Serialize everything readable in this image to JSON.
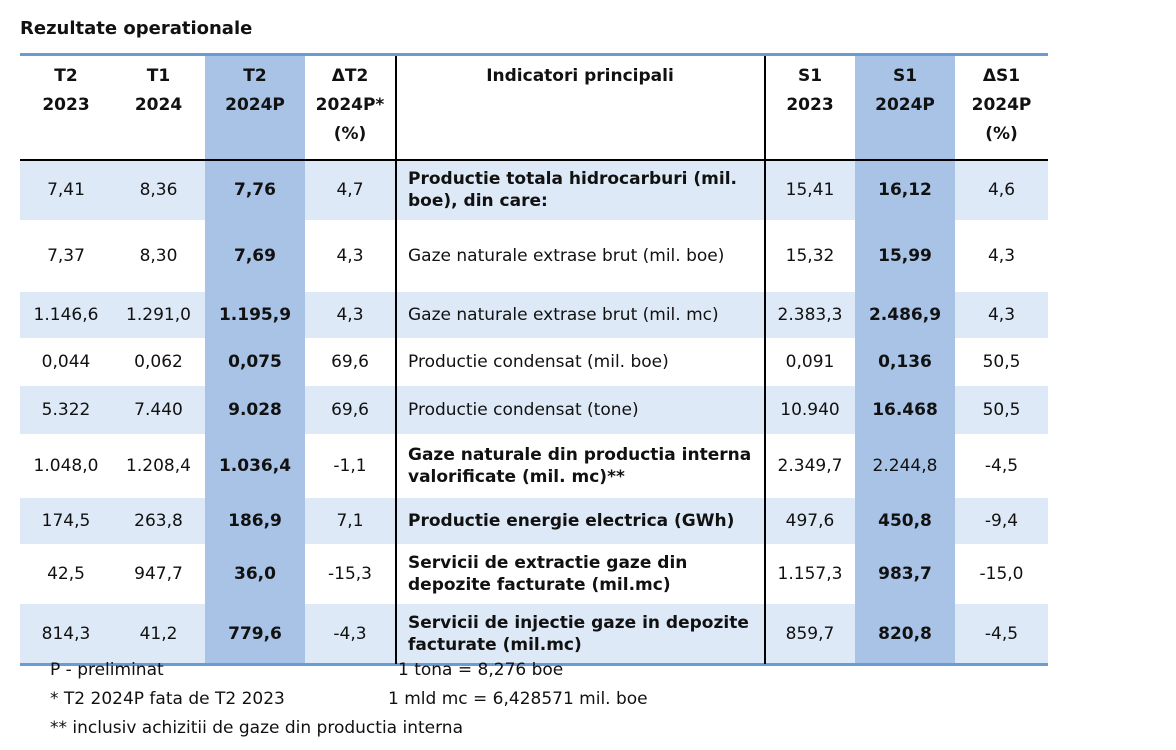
{
  "title": "Rezultate operationale",
  "table": {
    "header": [
      [
        "T2",
        "2023"
      ],
      [
        "T1",
        "2024"
      ],
      [
        "T2",
        "2024P"
      ],
      [
        "ΔT2",
        "2024P*",
        "(%)"
      ],
      [
        "Indicatori principali"
      ],
      [
        "S1",
        "2023"
      ],
      [
        "S1",
        "2024P"
      ],
      [
        "ΔS1",
        "2024P",
        "(%)"
      ]
    ],
    "rows": [
      [
        "7,41",
        "8,36",
        "7,76",
        "4,7",
        "Productie totala hidrocarburi (mil. boe), din care:",
        "15,41",
        "16,12",
        "4,6"
      ],
      [
        "7,37",
        "8,30",
        "7,69",
        "4,3",
        "Gaze naturale extrase brut (mil. boe)",
        "15,32",
        "15,99",
        "4,3"
      ],
      [
        "1.146,6",
        "1.291,0",
        "1.195,9",
        "4,3",
        "Gaze naturale extrase brut (mil. mc)",
        "2.383,3",
        "2.486,9",
        "4,3"
      ],
      [
        "0,044",
        "0,062",
        "0,075",
        "69,6",
        "Productie condensat (mil. boe)",
        "0,091",
        "0,136",
        "50,5"
      ],
      [
        "5.322",
        "7.440",
        "9.028",
        "69,6",
        "Productie condensat (tone)",
        "10.940",
        "16.468",
        "50,5"
      ],
      [
        "1.048,0",
        "1.208,4",
        "1.036,4",
        "-1,1",
        "Gaze naturale din productia interna valorificate (mil. mc)**",
        "2.349,7",
        "2.244,8",
        "-4,5"
      ],
      [
        "174,5",
        "263,8",
        "186,9",
        "7,1",
        "Productie energie electrica (GWh)",
        "497,6",
        "450,8",
        "-9,4"
      ],
      [
        "42,5",
        "947,7",
        "36,0",
        "-15,3",
        "Servicii de extractie gaze din depozite facturate (mil.mc)",
        "1.157,3",
        "983,7",
        "-15,0"
      ],
      [
        "814,3",
        "41,2",
        "779,6",
        "-4,3",
        "Servicii de injectie gaze in depozite facturate (mil.mc)",
        "859,7",
        "820,8",
        "-4,5"
      ]
    ]
  },
  "notes": [
    "P - preliminat",
    "1 tona = 8,276 boe",
    "* T2 2024P fata de T2 2023",
    "1 mld mc = 6,428571 mil. boe",
    "** inclusiv achizitii de gaze din productia interna"
  ]
}
